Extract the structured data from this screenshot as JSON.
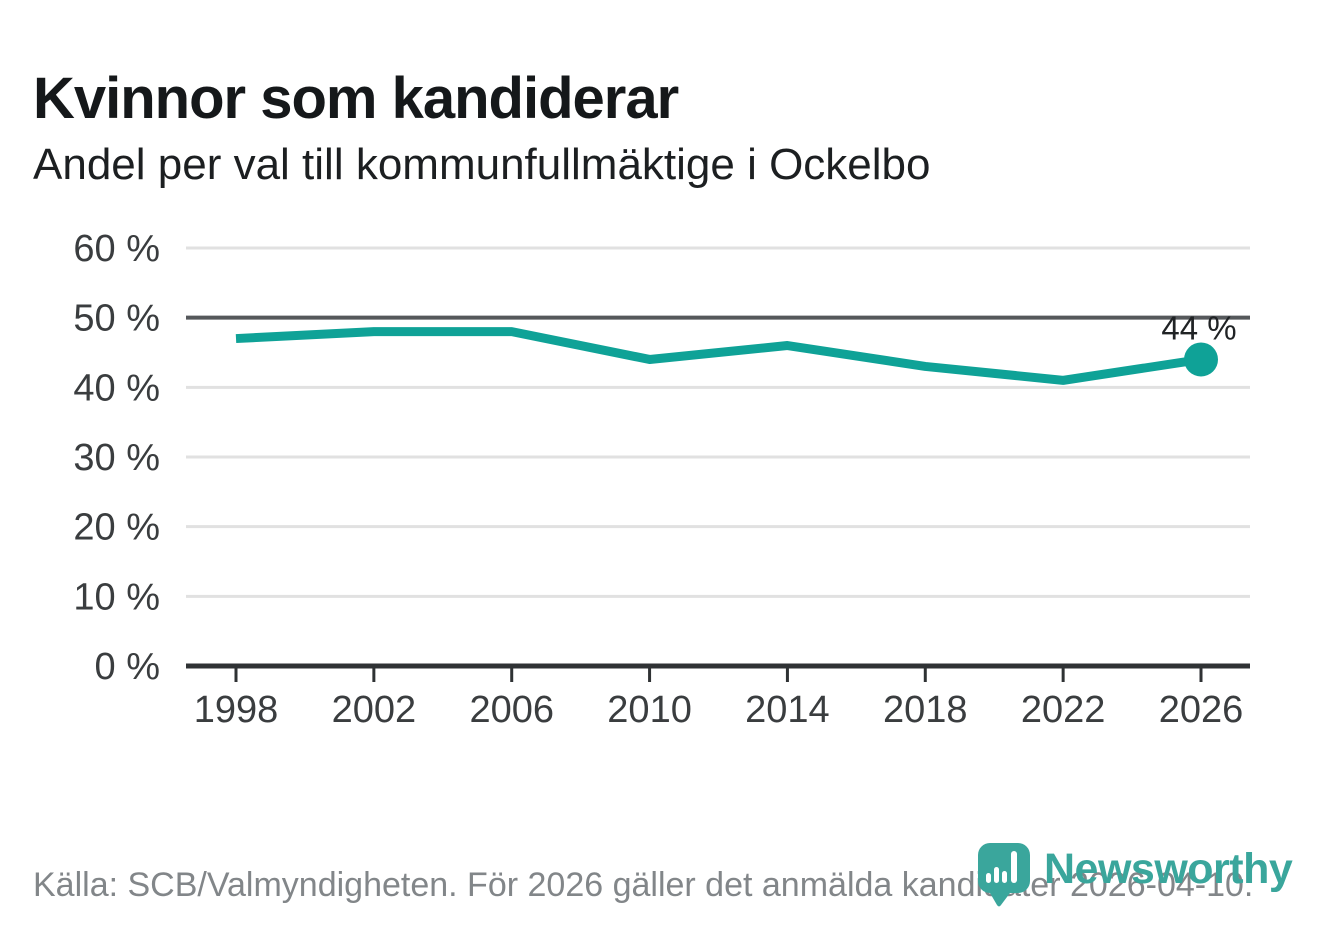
{
  "header": {
    "title": "Kvinnor som kandiderar",
    "subtitle": "Andel per val till kommunfullmäktige i Ockelbo"
  },
  "chart_data": {
    "type": "line",
    "title": "Kvinnor som kandiderar",
    "subtitle": "Andel per val till kommunfullmäktige i Ockelbo",
    "x": [
      1998,
      2002,
      2006,
      2010,
      2014,
      2018,
      2022,
      2026
    ],
    "values": [
      47,
      48,
      48,
      44,
      46,
      43,
      41,
      44
    ],
    "xlabel": "",
    "ylabel": "",
    "ylim": [
      0,
      60
    ],
    "yticks": [
      0,
      10,
      20,
      30,
      40,
      50,
      60
    ],
    "ytick_suffix": " %",
    "reference_line": 50,
    "grid": true,
    "legend": "none",
    "line_color": "#0fa297",
    "end_label": "44 %",
    "end_marker": true
  },
  "footer": {
    "source": "Källa: SCB/Valmyndigheten. För 2026 gäller det anmälda kandidater 2026-04-10."
  },
  "logo": {
    "text": "Newsworthy",
    "color": "#3aa69c",
    "icon": "bar-chart-map-pin-icon"
  },
  "colors": {
    "accent_teal": "#0fa297",
    "brand_teal": "#3aa69c",
    "reference_line_gray": "#55585b",
    "gridline_gray": "#e1e1e1",
    "axis_dark": "#2f3234",
    "text_dark": "#15181a",
    "muted_gray": "#828689"
  }
}
